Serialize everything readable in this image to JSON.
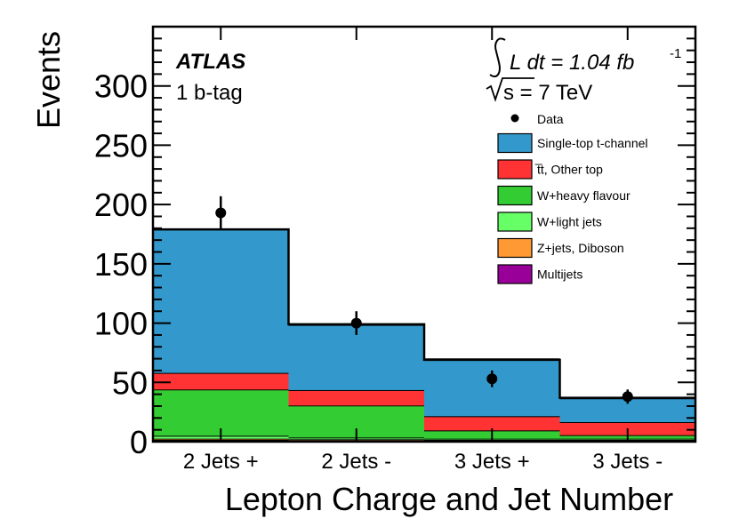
{
  "chart_data": {
    "type": "bar",
    "stacked": true,
    "histogram": true,
    "categories": [
      "2 Jets +",
      "2 Jets -",
      "3 Jets +",
      "3 Jets -"
    ],
    "series": [
      {
        "name": "Multijets",
        "color": "#990099",
        "values": [
          1.5,
          1,
          1,
          1
        ]
      },
      {
        "name": "Z+jets, Diboson",
        "color": "#ff9933",
        "values": [
          1,
          1,
          0.5,
          0.5
        ]
      },
      {
        "name": "W+light jets",
        "color": "#66ff66",
        "values": [
          2.5,
          1.5,
          1,
          1
        ]
      },
      {
        "name": "W+heavy flavour",
        "color": "#33cc33",
        "values": [
          39,
          27,
          7,
          3
        ]
      },
      {
        "name": "t̅t, Other top",
        "color": "#ff3333",
        "values": [
          14,
          13,
          12,
          11
        ]
      },
      {
        "name": "Single-top t-channel",
        "color": "#3399cc",
        "values": [
          121,
          55,
          48,
          20
        ]
      }
    ],
    "data_points": {
      "name": "Data",
      "values": [
        193,
        100,
        53,
        38
      ],
      "errors": [
        14,
        10,
        7,
        6
      ]
    },
    "totals": [
      179,
      99,
      69,
      37
    ],
    "xlabel": "Lepton Charge and Jet Number",
    "ylabel": "Events",
    "ylim": [
      0,
      350
    ],
    "yticks": [
      0,
      50,
      100,
      150,
      200,
      250,
      300
    ],
    "experiment": "ATLAS",
    "selection": "1 b-tag",
    "lumi_label": "L dt = 1.04 fb",
    "lumi_exp": "-1",
    "energy_label": "s = 7 TeV",
    "legend_position": "top-right"
  }
}
